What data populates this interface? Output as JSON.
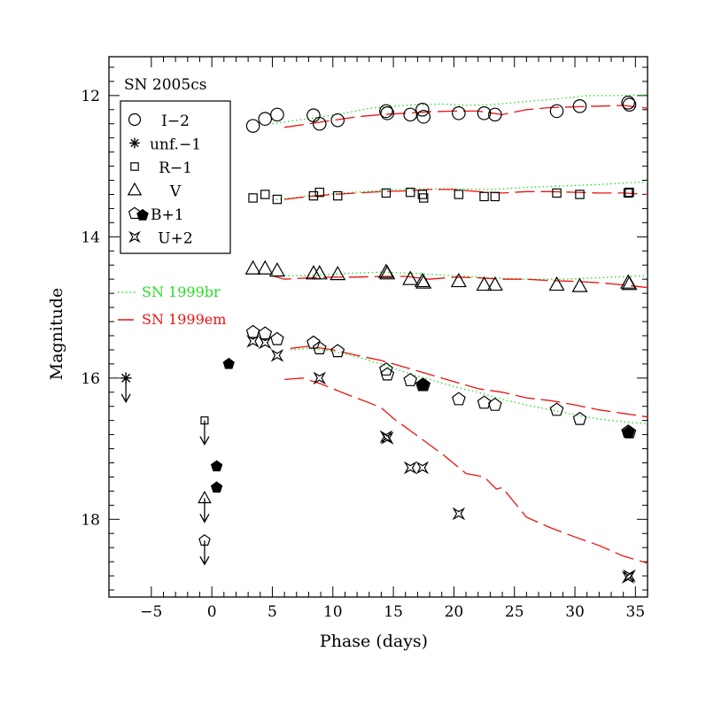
{
  "chart_data": {
    "type": "scatter",
    "title": "SN 2005cs",
    "xlabel": "Phase (days)",
    "ylabel": "Magnitude",
    "xlim": [
      -8.5,
      36
    ],
    "ylim": [
      19.1,
      11.45
    ],
    "y_inverted": true,
    "x_ticks": [
      -5,
      0,
      5,
      10,
      15,
      20,
      25,
      30,
      35
    ],
    "x_tick_labels": [
      "−5",
      "0",
      "5",
      "10",
      "15",
      "20",
      "25",
      "30",
      "35"
    ],
    "y_ticks": [
      12,
      14,
      16,
      18
    ],
    "y_tick_labels": [
      "12",
      "14",
      "16",
      "18"
    ],
    "legend_position": "top-left",
    "colors": {
      "sn1999br": "#22dd22",
      "sn1999em": "#ee1111",
      "axes": "#000000"
    },
    "series": [
      {
        "name": "I−2",
        "legend_label": "I−2",
        "marker": "circle",
        "x": [
          3.4,
          4.4,
          5.4,
          8.4,
          8.9,
          10.4,
          14.4,
          14.5,
          16.4,
          17.4,
          17.5,
          20.4,
          22.5,
          23.4,
          28.5,
          30.4,
          34.4,
          34.5
        ],
        "y": [
          12.43,
          12.33,
          12.27,
          12.28,
          12.4,
          12.35,
          12.22,
          12.25,
          12.27,
          12.2,
          12.3,
          12.25,
          12.25,
          12.27,
          12.22,
          12.15,
          12.1,
          12.13
        ]
      },
      {
        "name": "unf.−1",
        "legend_label": "unf.−1",
        "marker": "asterisk",
        "upper_limits": true,
        "x": [
          -7.1
        ],
        "y": [
          16.0
        ]
      },
      {
        "name": "R−1",
        "legend_label": "R−1",
        "marker": "square",
        "x": [
          3.4,
          4.4,
          5.4,
          8.4,
          8.9,
          10.4,
          14.4,
          16.4,
          17.4,
          17.5,
          20.4,
          22.5,
          23.4,
          28.5,
          30.4,
          34.4,
          34.5
        ],
        "y": [
          13.45,
          13.4,
          13.47,
          13.42,
          13.37,
          13.42,
          13.38,
          13.37,
          13.4,
          13.45,
          13.4,
          13.43,
          13.43,
          13.38,
          13.4,
          13.38,
          13.37
        ],
        "upper_limit_points": [
          {
            "x": -0.6,
            "y": 16.6
          }
        ]
      },
      {
        "name": "V",
        "legend_label": "V",
        "marker": "triangle",
        "x": [
          3.4,
          4.4,
          5.4,
          8.4,
          8.9,
          10.4,
          14.4,
          14.5,
          16.4,
          17.4,
          17.5,
          20.4,
          22.5,
          23.4,
          28.5,
          30.4,
          34.4,
          34.5
        ],
        "y": [
          14.45,
          14.45,
          14.48,
          14.52,
          14.52,
          14.53,
          14.5,
          14.52,
          14.6,
          14.63,
          14.65,
          14.63,
          14.68,
          14.68,
          14.68,
          14.7,
          14.65,
          14.67
        ],
        "upper_limit_points": [
          {
            "x": -0.6,
            "y": 17.7
          }
        ]
      },
      {
        "name": "B+1",
        "legend_label": "B+1",
        "marker": "pentagon",
        "x": [
          3.4,
          4.4,
          5.4,
          8.4,
          8.9,
          10.4,
          14.4,
          14.5,
          16.4,
          17.4,
          17.5,
          20.4,
          22.5,
          23.4,
          28.5,
          30.4,
          34.4,
          34.5
        ],
        "y": [
          15.35,
          15.37,
          15.45,
          15.5,
          15.58,
          15.62,
          15.88,
          15.95,
          16.03,
          16.1,
          16.1,
          16.3,
          16.35,
          16.38,
          16.45,
          16.58,
          16.76,
          16.77
        ],
        "upper_limit_points": [
          {
            "x": -0.6,
            "y": 18.3
          }
        ],
        "filled_points": [
          {
            "x": 0.4,
            "y": 17.25
          },
          {
            "x": 0.4,
            "y": 17.55
          },
          {
            "x": 1.4,
            "y": 15.8
          },
          {
            "x": 17.45,
            "y": 16.1
          },
          {
            "x": 34.45,
            "y": 16.77
          }
        ]
      },
      {
        "name": "U+2",
        "legend_label": "U+2",
        "marker": "star4",
        "x": [
          3.4,
          4.4,
          5.4,
          8.9,
          14.4,
          14.5,
          16.4,
          17.4,
          20.4,
          34.4,
          34.5
        ],
        "y": [
          15.48,
          15.5,
          15.68,
          16.0,
          16.83,
          16.85,
          17.27,
          17.27,
          17.92,
          18.82,
          18.8
        ]
      }
    ],
    "model_curves": [
      {
        "name": "SN 1999br",
        "style": "dotted",
        "color": "#22dd22",
        "curves": [
          {
            "x": [
              5,
              7,
              9,
              11,
              13,
              15,
              17,
              19,
              21,
              23,
              25,
              27,
              29,
              31,
              33,
              36
            ],
            "y": [
              12.4,
              12.35,
              12.3,
              12.25,
              12.18,
              12.15,
              12.13,
              12.12,
              12.14,
              12.13,
              12.1,
              12.07,
              12.04,
              12.0,
              12.0,
              11.99
            ]
          },
          {
            "x": [
              5,
              8,
              11,
              14,
              17,
              20,
              23,
              26,
              29,
              32,
              36
            ],
            "y": [
              13.48,
              13.42,
              13.38,
              13.34,
              13.32,
              13.32,
              13.33,
              13.3,
              13.28,
              13.26,
              13.22
            ]
          },
          {
            "x": [
              5,
              8,
              11,
              14,
              17,
              20,
              23,
              26,
              29,
              32,
              36
            ],
            "y": [
              14.55,
              14.55,
              14.52,
              14.5,
              14.52,
              14.55,
              14.58,
              14.6,
              14.6,
              14.58,
              14.55
            ]
          },
          {
            "x": [
              6.5,
              8,
              10,
              12,
              14,
              16,
              18,
              20,
              22,
              24,
              26,
              28,
              30,
              32,
              34,
              36
            ],
            "y": [
              15.6,
              15.58,
              15.62,
              15.7,
              15.8,
              15.92,
              16.02,
              16.12,
              16.2,
              16.3,
              16.38,
              16.45,
              16.52,
              16.58,
              16.62,
              16.65
            ]
          }
        ]
      },
      {
        "name": "SN 1999em",
        "style": "dashed",
        "color": "#ee1111",
        "curves": [
          {
            "x": [
              6,
              8,
              10,
              12,
              14,
              16,
              18,
              20,
              22,
              24,
              26,
              28,
              30,
              32,
              34,
              36
            ],
            "y": [
              12.45,
              12.4,
              12.35,
              12.3,
              12.27,
              12.25,
              12.23,
              12.22,
              12.22,
              12.27,
              12.2,
              12.17,
              12.16,
              12.15,
              12.14,
              12.18
            ]
          },
          {
            "x": [
              6,
              8,
              10,
              12,
              14,
              16,
              18,
              20,
              22,
              24,
              26,
              28,
              30,
              32,
              34,
              36
            ],
            "y": [
              13.47,
              13.43,
              13.4,
              13.38,
              13.36,
              13.35,
              13.33,
              13.33,
              13.36,
              13.38,
              13.36,
              13.36,
              13.37,
              13.38,
              13.38,
              13.4
            ]
          },
          {
            "x": [
              5,
              6,
              8,
              10,
              12,
              14,
              16,
              18,
              20,
              22,
              24,
              26,
              28,
              30,
              32,
              34,
              36
            ],
            "y": [
              14.55,
              14.6,
              14.58,
              14.57,
              14.57,
              14.56,
              14.56,
              14.6,
              14.57,
              14.58,
              14.6,
              14.6,
              14.62,
              14.63,
              14.65,
              14.68,
              14.72
            ]
          },
          {
            "x": [
              6.5,
              8,
              10,
              12,
              14,
              16,
              18,
              20,
              22,
              24,
              26,
              28,
              30,
              32,
              34,
              36
            ],
            "y": [
              15.58,
              15.55,
              15.6,
              15.68,
              15.75,
              15.85,
              15.95,
              16.05,
              16.15,
              16.2,
              16.28,
              16.32,
              16.38,
              16.45,
              16.5,
              16.55
            ]
          },
          {
            "x": [
              6,
              7.5,
              9,
              11,
              13,
              14,
              15,
              17,
              19,
              21,
              22.5,
              23.5,
              24,
              26,
              28,
              30,
              32,
              34,
              36
            ],
            "y": [
              16.02,
              16.0,
              16.08,
              16.22,
              16.35,
              16.42,
              16.57,
              16.82,
              17.07,
              17.35,
              17.4,
              17.57,
              17.55,
              17.97,
              18.12,
              18.25,
              18.37,
              18.52,
              18.62
            ]
          }
        ]
      }
    ],
    "annotations": [
      "SN 2005cs",
      "SN 1999br",
      "SN 1999em"
    ]
  }
}
